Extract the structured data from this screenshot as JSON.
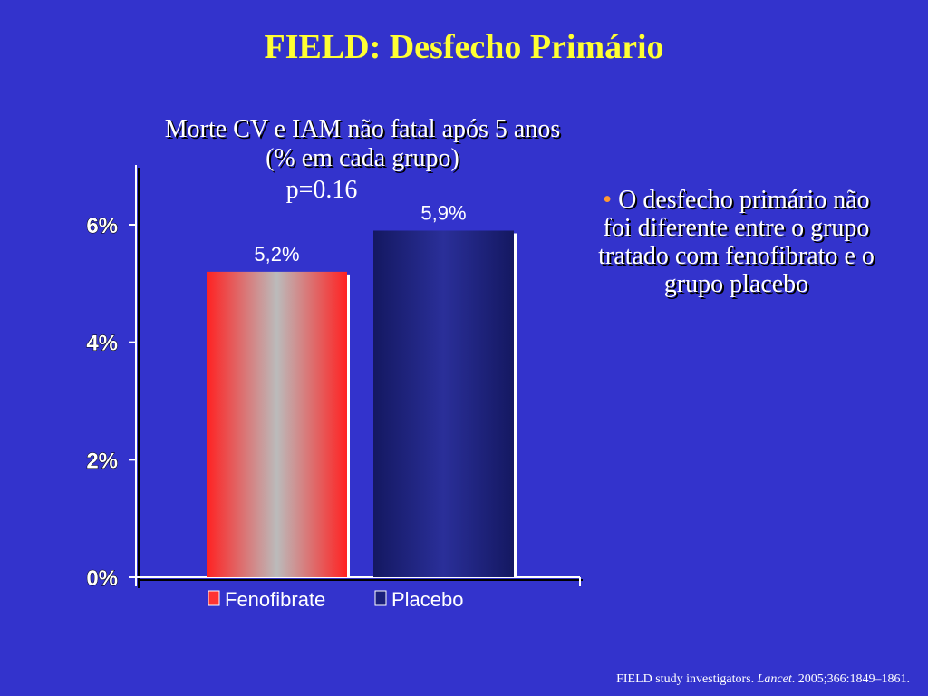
{
  "title": "FIELD: Desfecho Primário",
  "subtitle_line1": "Morte CV e IAM não fatal após 5 anos",
  "subtitle_line2": "(% em cada grupo)",
  "pvalue": "p=0.16",
  "bullet": {
    "marker": "•",
    "text": "O desfecho primário não foi diferente entre o grupo tratado com fenofibrato e o grupo placebo"
  },
  "footer": {
    "authors": "FIELD study investigators. ",
    "journal": "Lancet",
    "citation": ". 2005;366:1849–1861."
  },
  "chart_data": {
    "type": "bar",
    "categories": [
      "Fenofibrate",
      "Placebo"
    ],
    "values": [
      5.2,
      5.9
    ],
    "data_labels": [
      "5,2%",
      "5,9%"
    ],
    "ylim": [
      0,
      6
    ],
    "yticks": [
      0,
      2,
      4,
      6
    ],
    "ytick_labels": [
      "0%",
      "2%",
      "4%",
      "6%"
    ],
    "legend": [
      {
        "name": "Fenofibrate",
        "color": "#ff3333"
      },
      {
        "name": "Placebo",
        "color": "#1a1f7a"
      }
    ],
    "colors": {
      "fenofibrate_edge": "#ff2222",
      "fenofibrate_center": "#bbbbbb",
      "placebo_edge": "#141861",
      "placebo_center": "#2a2f99"
    }
  }
}
